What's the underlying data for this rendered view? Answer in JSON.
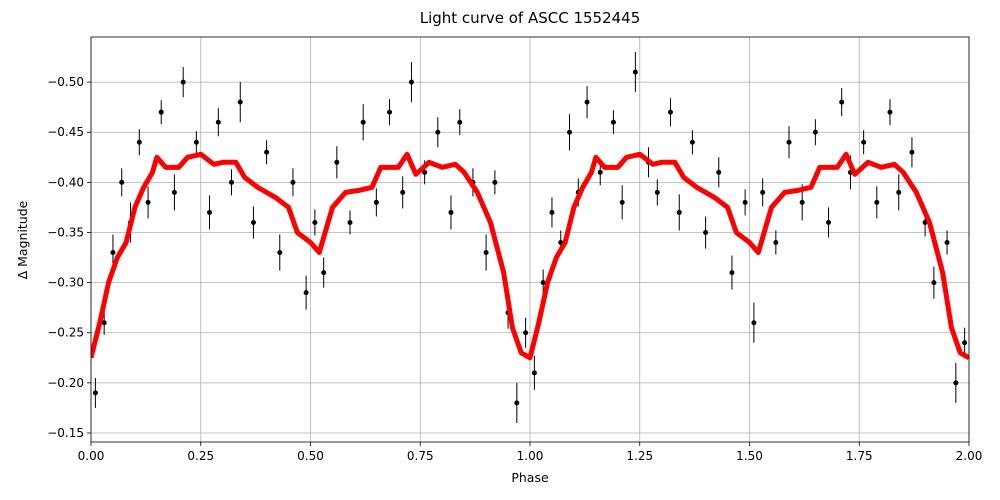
{
  "chart_data": {
    "type": "scatter",
    "title": "Light curve of ASCC 1552445",
    "x_label": "Phase",
    "y_label": "Δ Magnitude",
    "xlim": [
      0,
      2
    ],
    "ylim": [
      -0.141,
      -0.545
    ],
    "xticks": [
      {
        "value": 0,
        "label": "0.00"
      },
      {
        "value": 0.25,
        "label": "0.25"
      },
      {
        "value": 0.5,
        "label": "0.50"
      },
      {
        "value": 0.75,
        "label": "0.75"
      },
      {
        "value": 1,
        "label": "1.00"
      },
      {
        "value": 1.25,
        "label": "1.25"
      },
      {
        "value": 1.5,
        "label": "1.50"
      },
      {
        "value": 1.75,
        "label": "1.75"
      },
      {
        "value": 2,
        "label": "2.00"
      }
    ],
    "yticks": [
      {
        "value": -0.5,
        "label": "−0.50"
      },
      {
        "value": -0.45,
        "label": "−0.45"
      },
      {
        "value": -0.4,
        "label": "−0.40"
      },
      {
        "value": -0.35,
        "label": "−0.35"
      },
      {
        "value": -0.3,
        "label": "−0.30"
      },
      {
        "value": -0.25,
        "label": "−0.25"
      },
      {
        "value": -0.2,
        "label": "−0.20"
      },
      {
        "value": -0.15,
        "label": "−0.15"
      }
    ],
    "grid": true,
    "series": [
      {
        "type": "scatter",
        "color": "#000000",
        "x": [
          0.01,
          0.03,
          0.05,
          0.07,
          0.09,
          0.11,
          0.13,
          0.16,
          0.19,
          0.21,
          0.24,
          0.27,
          0.29,
          0.32,
          0.34,
          0.37,
          0.4,
          0.43,
          0.46,
          0.49,
          0.51,
          0.53,
          0.56,
          0.59,
          0.62,
          0.65,
          0.68,
          0.71,
          0.73,
          0.76,
          0.79,
          0.82,
          0.84,
          0.87,
          0.9,
          0.92,
          0.95,
          0.97,
          0.99,
          1.01,
          1.03,
          1.05,
          1.07,
          1.09,
          1.11,
          1.13,
          1.16,
          1.19,
          1.21,
          1.24,
          1.27,
          1.29,
          1.32,
          1.34,
          1.37,
          1.4,
          1.43,
          1.46,
          1.49,
          1.51,
          1.53,
          1.56,
          1.59,
          1.62,
          1.65,
          1.68,
          1.71,
          1.73,
          1.76,
          1.79,
          1.82,
          1.84,
          1.87,
          1.9,
          1.92,
          1.95,
          1.97,
          1.99
        ],
        "values": [
          -0.19,
          -0.26,
          -0.33,
          -0.4,
          -0.36,
          -0.44,
          -0.38,
          -0.47,
          -0.39,
          -0.5,
          -0.44,
          -0.37,
          -0.46,
          -0.4,
          -0.48,
          -0.36,
          -0.43,
          -0.33,
          -0.4,
          -0.29,
          -0.36,
          -0.31,
          -0.42,
          -0.36,
          -0.46,
          -0.38,
          -0.47,
          -0.39,
          -0.5,
          -0.41,
          -0.45,
          -0.37,
          -0.46,
          -0.4,
          -0.33,
          -0.4,
          -0.27,
          -0.18,
          -0.25,
          -0.21,
          -0.3,
          -0.37,
          -0.34,
          -0.45,
          -0.39,
          -0.48,
          -0.41,
          -0.46,
          -0.38,
          -0.51,
          -0.42,
          -0.39,
          -0.47,
          -0.37,
          -0.44,
          -0.35,
          -0.41,
          -0.31,
          -0.38,
          -0.26,
          -0.39,
          -0.34,
          -0.44,
          -0.38,
          -0.45,
          -0.36,
          -0.48,
          -0.41,
          -0.44,
          -0.38,
          -0.47,
          -0.39,
          -0.43,
          -0.36,
          -0.3,
          -0.34,
          -0.2,
          -0.24
        ],
        "errors": [
          0.015,
          0.012,
          0.018,
          0.014,
          0.02,
          0.013,
          0.016,
          0.012,
          0.018,
          0.015,
          0.011,
          0.017,
          0.014,
          0.013,
          0.02,
          0.016,
          0.012,
          0.018,
          0.014,
          0.017,
          0.013,
          0.015,
          0.016,
          0.012,
          0.018,
          0.014,
          0.013,
          0.016,
          0.02,
          0.012,
          0.015,
          0.017,
          0.013,
          0.014,
          0.018,
          0.012,
          0.016,
          0.02,
          0.015,
          0.017,
          0.013,
          0.015,
          0.012,
          0.018,
          0.014,
          0.016,
          0.013,
          0.012,
          0.017,
          0.02,
          0.015,
          0.013,
          0.014,
          0.018,
          0.012,
          0.016,
          0.015,
          0.017,
          0.013,
          0.02,
          0.014,
          0.012,
          0.016,
          0.018,
          0.013,
          0.015,
          0.014,
          0.017,
          0.012,
          0.016,
          0.013,
          0.018,
          0.015,
          0.014,
          0.016,
          0.012,
          0.02,
          0.015
        ]
      },
      {
        "type": "line",
        "color": "#ff0000",
        "x": [
          0,
          0.02,
          0.04,
          0.06,
          0.08,
          0.1,
          0.12,
          0.14,
          0.15,
          0.17,
          0.2,
          0.22,
          0.25,
          0.28,
          0.3,
          0.33,
          0.35,
          0.38,
          0.42,
          0.45,
          0.47,
          0.5,
          0.52,
          0.55,
          0.58,
          0.61,
          0.64,
          0.66,
          0.7,
          0.72,
          0.74,
          0.77,
          0.8,
          0.83,
          0.85,
          0.88,
          0.91,
          0.94,
          0.96,
          0.98,
          1.0,
          1.02,
          1.04,
          1.06,
          1.08,
          1.1,
          1.12,
          1.14,
          1.15,
          1.17,
          1.2,
          1.22,
          1.25,
          1.28,
          1.3,
          1.33,
          1.35,
          1.38,
          1.42,
          1.45,
          1.47,
          1.5,
          1.52,
          1.55,
          1.58,
          1.61,
          1.64,
          1.66,
          1.7,
          1.72,
          1.74,
          1.77,
          1.8,
          1.83,
          1.85,
          1.88,
          1.91,
          1.94,
          1.96,
          1.98,
          2.0
        ],
        "values": [
          -0.225,
          -0.26,
          -0.3,
          -0.325,
          -0.34,
          -0.375,
          -0.395,
          -0.41,
          -0.425,
          -0.415,
          -0.415,
          -0.425,
          -0.428,
          -0.418,
          -0.42,
          -0.42,
          -0.405,
          -0.395,
          -0.385,
          -0.375,
          -0.35,
          -0.34,
          -0.33,
          -0.375,
          -0.39,
          -0.392,
          -0.395,
          -0.415,
          -0.415,
          -0.428,
          -0.408,
          -0.42,
          -0.415,
          -0.418,
          -0.41,
          -0.39,
          -0.36,
          -0.31,
          -0.255,
          -0.23,
          -0.225,
          -0.26,
          -0.3,
          -0.325,
          -0.34,
          -0.375,
          -0.395,
          -0.41,
          -0.425,
          -0.415,
          -0.415,
          -0.425,
          -0.428,
          -0.418,
          -0.42,
          -0.42,
          -0.405,
          -0.395,
          -0.385,
          -0.375,
          -0.35,
          -0.34,
          -0.33,
          -0.375,
          -0.39,
          -0.392,
          -0.395,
          -0.415,
          -0.415,
          -0.428,
          -0.408,
          -0.42,
          -0.415,
          -0.418,
          -0.41,
          -0.39,
          -0.36,
          -0.31,
          -0.255,
          -0.23,
          -0.225
        ]
      }
    ]
  }
}
